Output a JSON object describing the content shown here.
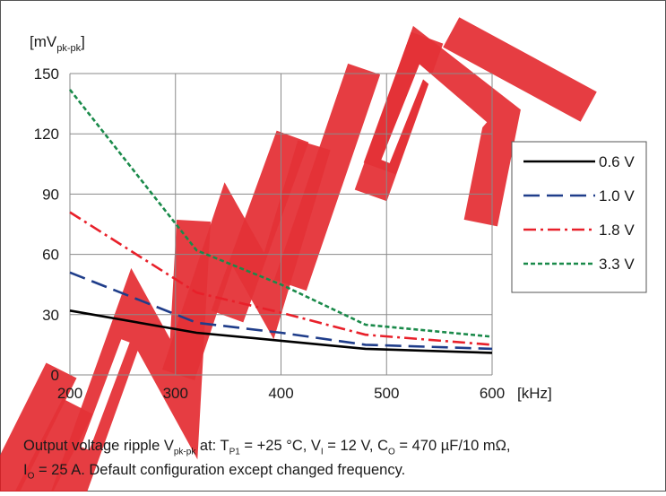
{
  "chart_data": {
    "type": "line",
    "ylabel": "[mV",
    "ylabel_sub": "pk-pk",
    "ylabel_close": "]",
    "xlabel": "[kHz]",
    "xlim": [
      200,
      600
    ],
    "ylim": [
      0,
      150
    ],
    "x_ticks": [
      200,
      300,
      400,
      500,
      600
    ],
    "y_ticks": [
      0,
      30,
      60,
      90,
      120,
      150
    ],
    "grid": true,
    "legend_position": "right",
    "series": [
      {
        "name": "0.6 V",
        "color": "#000000",
        "dash": "solid",
        "x": [
          200,
          320,
          400,
          480,
          600
        ],
        "y": [
          32,
          21,
          17,
          13,
          11
        ]
      },
      {
        "name": "1.0 V",
        "color": "#1f3d8a",
        "dash": "long-dash",
        "x": [
          200,
          320,
          400,
          480,
          600
        ],
        "y": [
          51,
          26,
          21,
          15,
          13
        ]
      },
      {
        "name": "1.8 V",
        "color": "#e8202a",
        "dash": "dash-dot",
        "x": [
          200,
          320,
          400,
          480,
          600
        ],
        "y": [
          81,
          41,
          31,
          20,
          15
        ]
      },
      {
        "name": "3.3 V",
        "color": "#1a8a4a",
        "dash": "short-dash",
        "x": [
          200,
          320,
          400,
          480,
          600
        ],
        "y": [
          142,
          62,
          45,
          25,
          19
        ]
      }
    ]
  },
  "watermark": "DISCONTINUED",
  "caption": {
    "line1_a": "Output voltage ripple V",
    "line1_sub1": "pk-pk",
    "line1_b": " at: T",
    "line1_sub2": "P1",
    "line1_c": " = +25 °C, V",
    "line1_sub3": "I",
    "line1_d": " = 12 V, C",
    "line1_sub4": "O",
    "line1_e": " = 470 µF/10 mΩ,",
    "line2_a": "I",
    "line2_sub": "O",
    "line2_b": " = 25 A. Default configuration except changed frequency."
  }
}
